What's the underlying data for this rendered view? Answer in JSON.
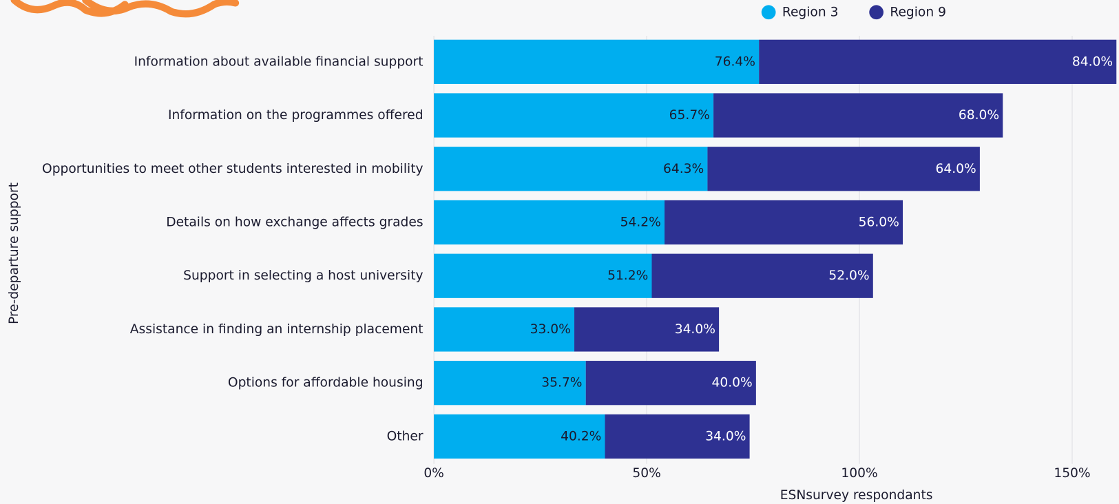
{
  "chart_data": {
    "type": "stacked-bar-horizontal",
    "y_axis_label": "Pre-departure support",
    "x_axis_label": "ESNsurvey respondants",
    "categories": [
      "Information about available financial support",
      "Information on the programmes offered",
      "Opportunities to meet other students interested in mobility",
      "Details on how exchange affects grades",
      "Support in selecting a host university",
      "Assistance in finding an internship placement",
      "Options for affordable housing",
      "Other"
    ],
    "series": [
      {
        "name": "Region 3",
        "color": "#00aeef",
        "label_color": "#1a1a2e",
        "values": [
          76.4,
          65.7,
          64.3,
          54.2,
          51.2,
          33.0,
          35.7,
          40.2
        ],
        "value_labels": [
          "76.4%",
          "65.7%",
          "64.3%",
          "54.2%",
          "51.2%",
          "33.0%",
          "35.7%",
          "40.2%"
        ]
      },
      {
        "name": "Region 9",
        "color": "#2e3192",
        "label_color": "#ffffff",
        "values": [
          84.0,
          68.0,
          64.0,
          56.0,
          52.0,
          34.0,
          40.0,
          34.0
        ],
        "value_labels": [
          "84.0%",
          "68.0%",
          "64.0%",
          "56.0%",
          "52.0%",
          "34.0%",
          "40.0%",
          "34.0%"
        ]
      }
    ],
    "xlim": [
      0,
      160
    ],
    "xticks": [
      {
        "value": 0,
        "label": "0%"
      },
      {
        "value": 50,
        "label": "50%"
      },
      {
        "value": 100,
        "label": "100%"
      },
      {
        "value": 150,
        "label": "150%"
      }
    ],
    "grid": true,
    "legend_position": "top"
  }
}
